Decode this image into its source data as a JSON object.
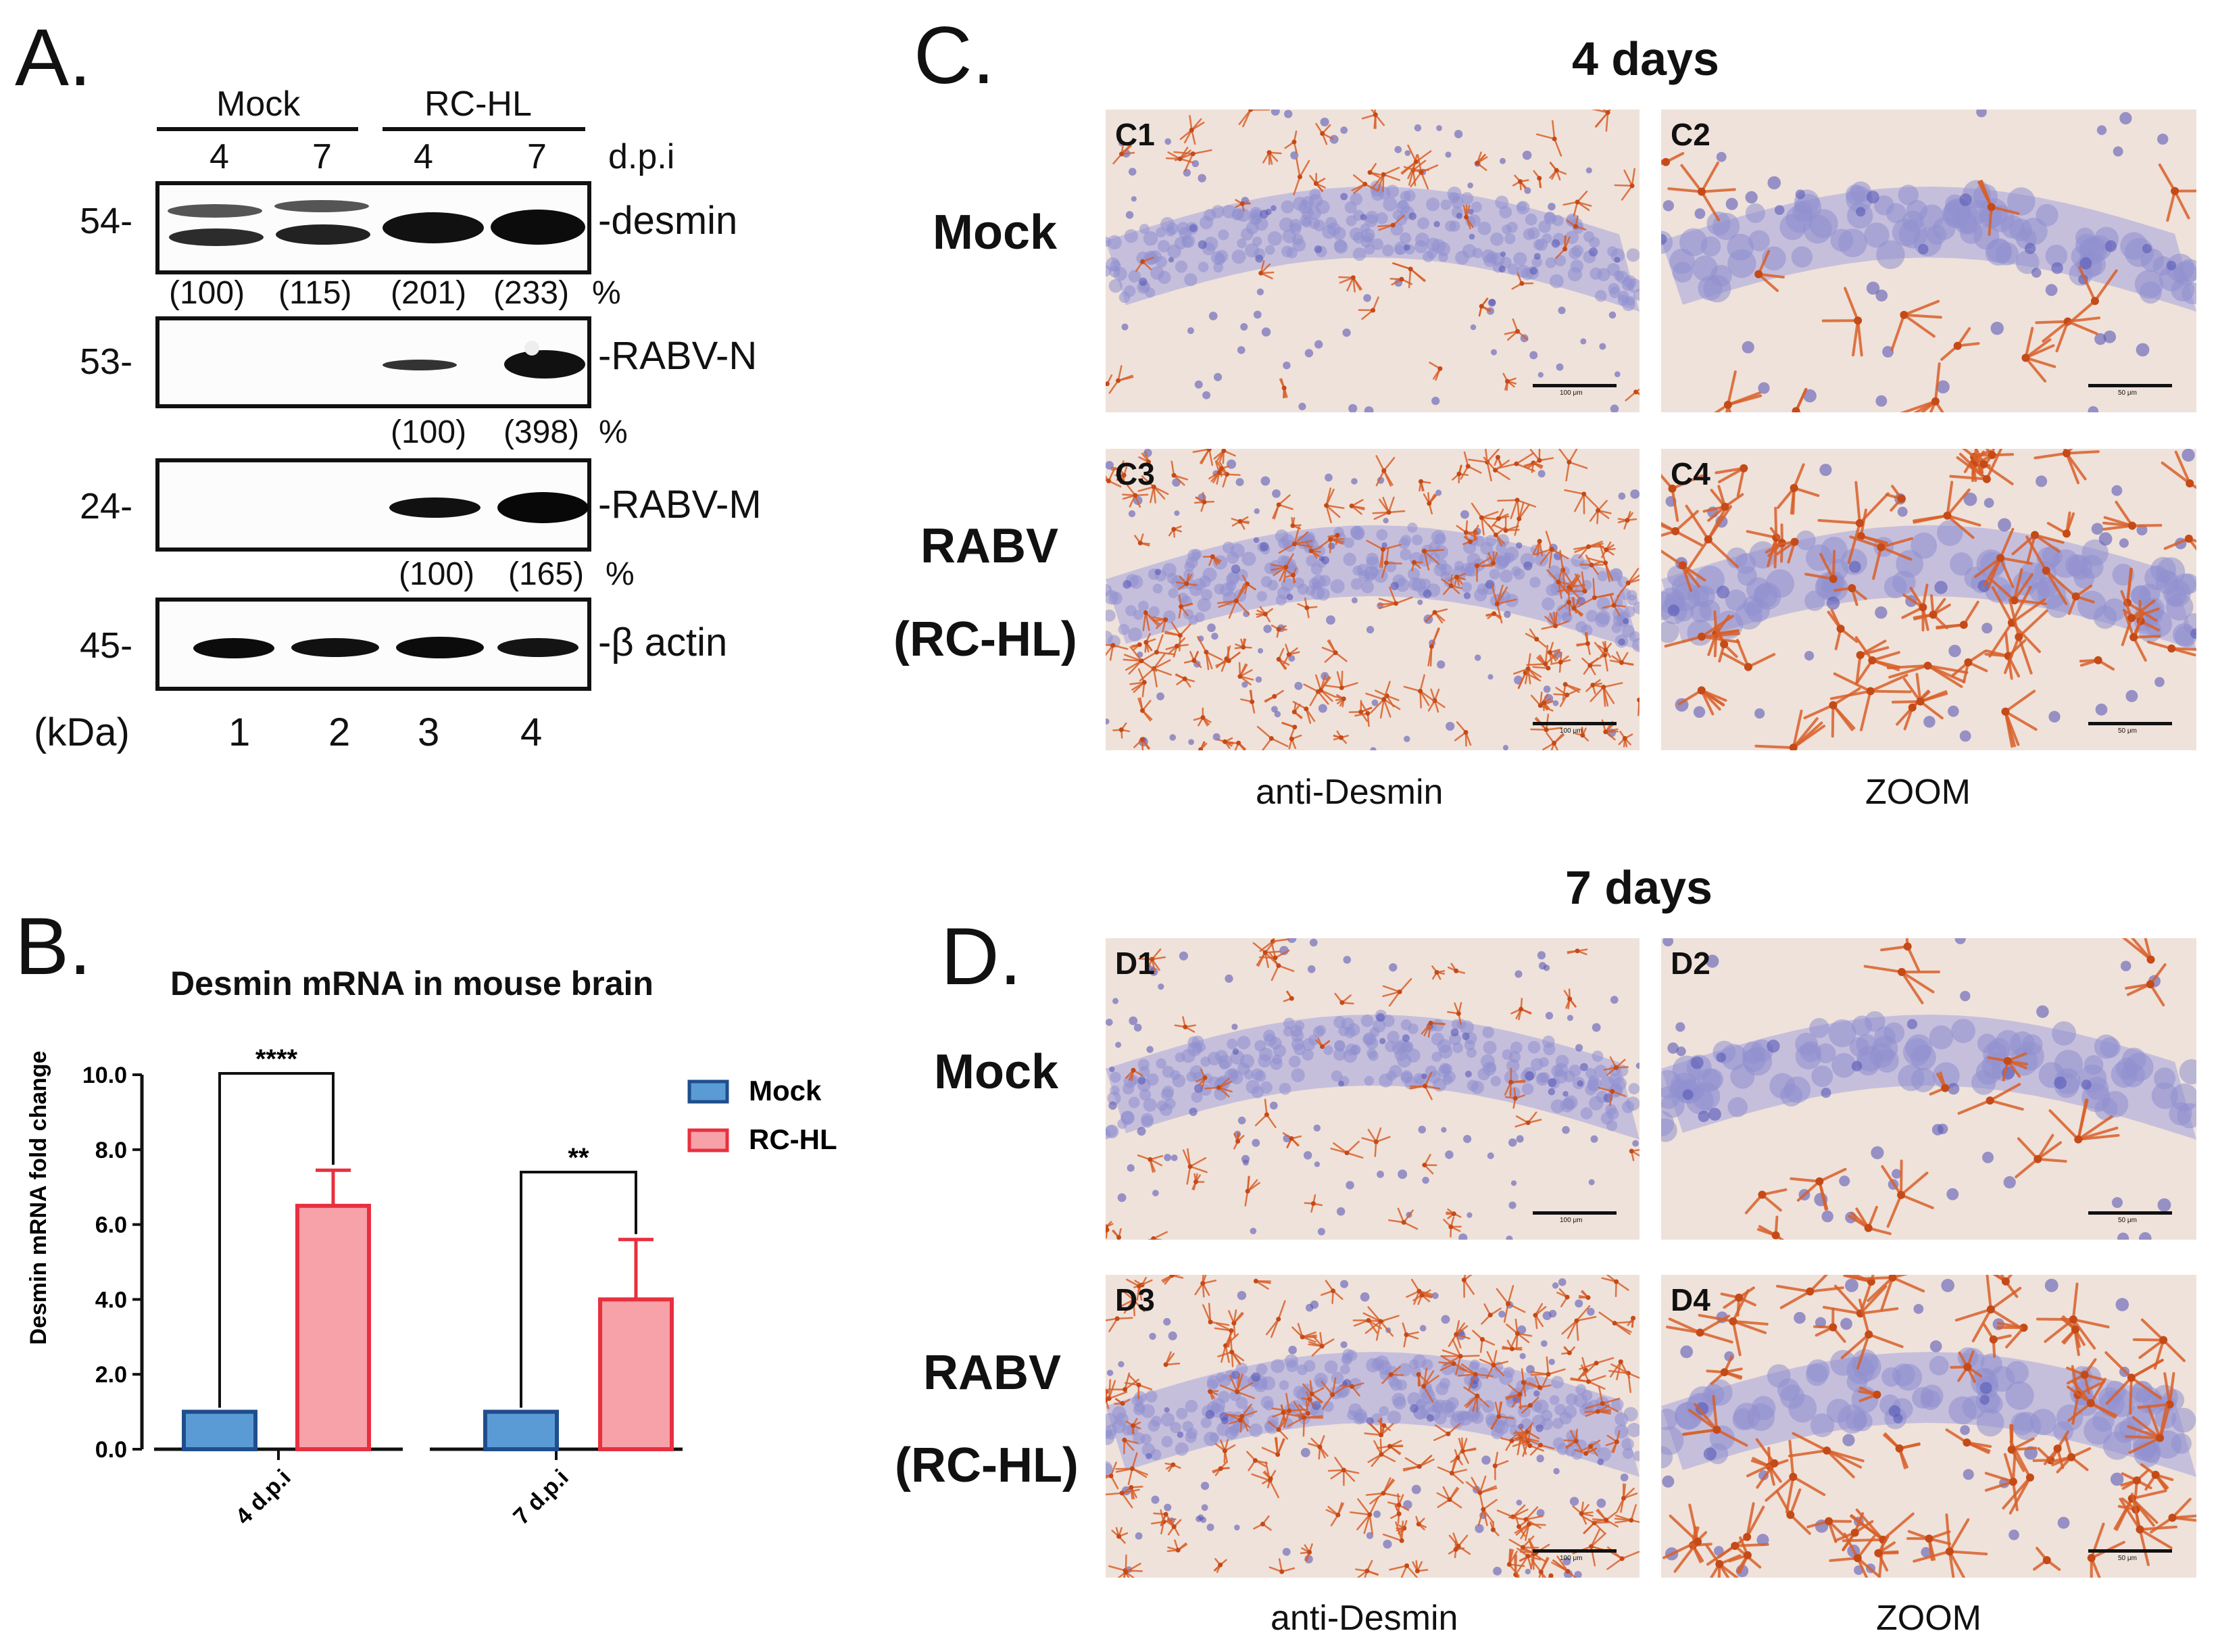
{
  "panels": {
    "A": "A.",
    "B": "B.",
    "C": "C.",
    "D": "D."
  },
  "western": {
    "groups": [
      "Mock",
      "RC-HL"
    ],
    "dpi_values": [
      "4",
      "7",
      "4",
      "7"
    ],
    "dpi_label": "d.p.i",
    "rows": [
      {
        "marker": "54-",
        "protein": "-desmin",
        "quant": [
          "(100)",
          "(115)",
          "(201)",
          "(233)"
        ],
        "pct": "%"
      },
      {
        "marker": "53-",
        "protein": "-RABV-N",
        "quant": [
          "(100)",
          "(398)"
        ],
        "pct": "%"
      },
      {
        "marker": "24-",
        "protein": "-RABV-M",
        "quant": [
          "(100)",
          "(165)"
        ],
        "pct": "%"
      },
      {
        "marker": "45-",
        "protein": "-β actin"
      }
    ],
    "kda_label": "(kDa)",
    "lanes": [
      "1",
      "2",
      "3",
      "4"
    ]
  },
  "chart_data": {
    "type": "bar",
    "title": "Desmin mRNA in mouse brain",
    "ylabel": "Desmin mRNA fold change",
    "categories": [
      "4 d.p.i",
      "7 d.p.i"
    ],
    "series": [
      {
        "name": "Mock",
        "values": [
          1.0,
          1.0
        ],
        "color": "#5b9bd5",
        "edge": "#1f4e8c"
      },
      {
        "name": "RC-HL",
        "values": [
          6.5,
          4.0
        ],
        "errors": [
          0.95,
          1.6
        ],
        "color": "#f7a1a8",
        "edge": "#e8303f"
      }
    ],
    "yticks": [
      "0.0",
      "2.0",
      "4.0",
      "6.0",
      "8.0",
      "10.0"
    ],
    "ylim": [
      0,
      10
    ],
    "significance": [
      "****",
      "**"
    ],
    "legend": "top-right"
  },
  "histology": {
    "C": {
      "title": "4 days",
      "row_labels": [
        [
          "Mock"
        ],
        [
          "RABV",
          "(RC-HL)"
        ]
      ],
      "tiles": [
        "C1",
        "C2",
        "C3",
        "C4"
      ],
      "captions": [
        "anti-Desmin",
        "ZOOM"
      ],
      "scale": [
        "100 μm",
        "50 μm",
        "100 μm",
        "50 μm"
      ]
    },
    "D": {
      "title": "7 days",
      "row_labels": [
        [
          "Mock"
        ],
        [
          "RABV",
          "(RC-HL)"
        ]
      ],
      "tiles": [
        "D1",
        "D2",
        "D3",
        "D4"
      ],
      "captions": [
        "anti-Desmin",
        "ZOOM"
      ],
      "scale": [
        "100 μm",
        "50 μm",
        "100 μm",
        "50 μm"
      ]
    }
  },
  "colors": {
    "mock": "#5b9bd5",
    "rchl": "#f7a1a8",
    "stain": "#d9602a",
    "nuclei": "#8f8fd0",
    "tissue": "#efe2da"
  }
}
